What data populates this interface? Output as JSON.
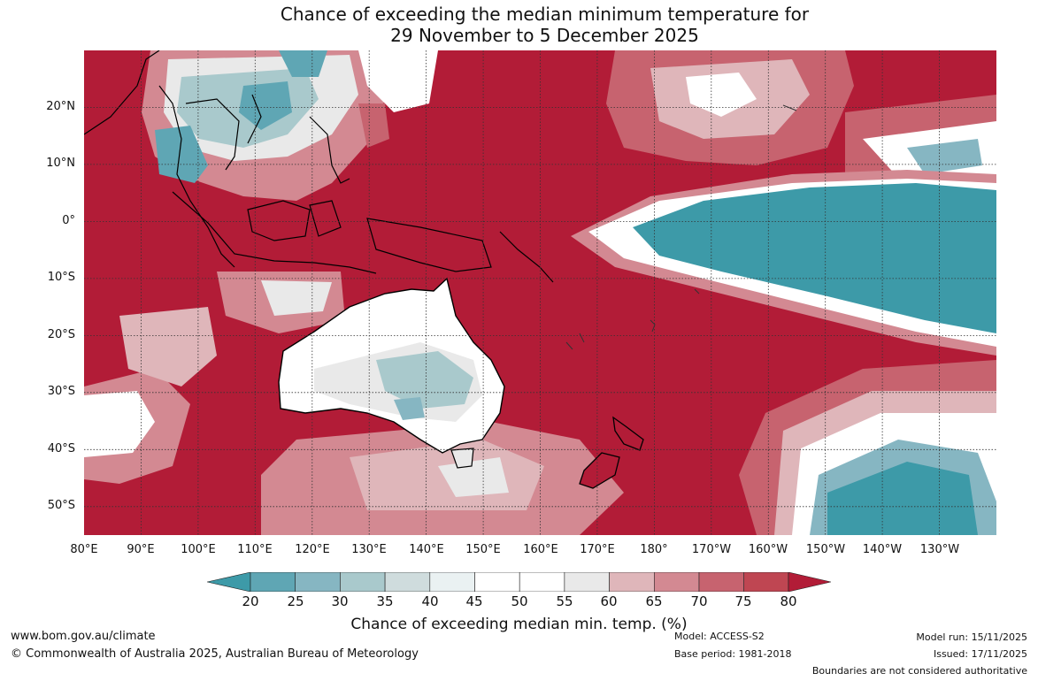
{
  "title": {
    "line1": "Chance of exceeding the median minimum temperature for",
    "line2": "29 November to 5 December 2025"
  },
  "map": {
    "lat_labels": [
      "20°N",
      "10°N",
      "0°",
      "10°S",
      "20°S",
      "30°S",
      "40°S",
      "50°S"
    ],
    "lon_labels": [
      "80°E",
      "90°E",
      "100°E",
      "110°E",
      "120°E",
      "130°E",
      "140°E",
      "150°E",
      "160°E",
      "170°E",
      "180°",
      "170°W",
      "160°W",
      "150°W",
      "140°W",
      "130°W"
    ],
    "lat_range": [
      -55,
      30
    ],
    "lon_range_east": [
      80,
      240
    ],
    "dominant_category": "80+",
    "colors": {
      "below_20": "#3d9aa8",
      "c20_25": "#5fa6b4",
      "c25_30": "#86b6c2",
      "c30_35": "#a9c9cc",
      "c35_40": "#cfdcdd",
      "c40_45": "#eaf1f2",
      "c45_55": "#ffffff",
      "c55_60": "#e9e9e9",
      "c60_65": "#dfb6ba",
      "c65_70": "#d38992",
      "c70_75": "#c7636f",
      "c75_80": "#bf4652",
      "above_80": "#b21c37",
      "coastline": "#000000",
      "gridline": "#333333"
    }
  },
  "colorbar": {
    "ticks": [
      "20",
      "25",
      "30",
      "35",
      "40",
      "45",
      "50",
      "55",
      "60",
      "65",
      "70",
      "75",
      "80"
    ],
    "label": "Chance of exceeding median min. temp. (%)"
  },
  "footer": {
    "website": "www.bom.gov.au/climate",
    "copyright": "© Commonwealth of Australia 2025, Australian Bureau of Meteorology",
    "model": "Model: ACCESS-S2",
    "base_period": "Base period: 1981-2018",
    "model_run": "Model run: 15/11/2025",
    "issued": "Issued: 17/11/2025",
    "boundaries_note": "Boundaries are not considered authoritative"
  }
}
